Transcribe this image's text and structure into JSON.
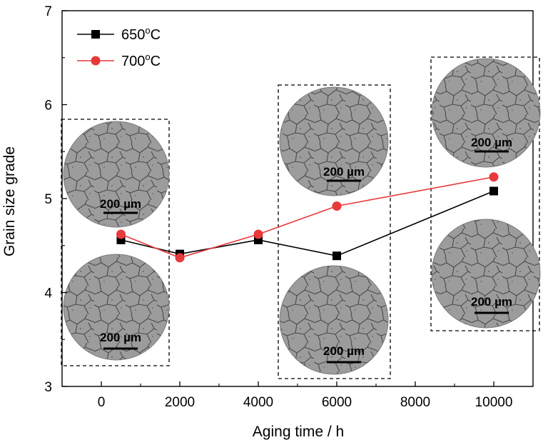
{
  "chart_data": {
    "type": "line",
    "xlabel": "Aging time / h",
    "ylabel": "Grain size grade",
    "xlim": [
      -1000,
      11000
    ],
    "ylim": [
      3,
      7
    ],
    "xticks": [
      0,
      2000,
      4000,
      6000,
      8000,
      10000
    ],
    "yticks": [
      3,
      4,
      5,
      6,
      7
    ],
    "grid": false,
    "legend_position": "top-left",
    "series": [
      {
        "name": "650°C",
        "legend_base": "650",
        "legend_sup": "o",
        "legend_suffix": "C",
        "color": "#000000",
        "marker": "square",
        "x": [
          500,
          2000,
          4000,
          6000,
          10000
        ],
        "y": [
          4.56,
          4.41,
          4.56,
          4.39,
          5.08
        ]
      },
      {
        "name": "700°C",
        "legend_base": "700",
        "legend_sup": "o",
        "legend_suffix": "C",
        "color": "#e8393c",
        "marker": "circle",
        "x": [
          500,
          2000,
          4000,
          6000,
          10000
        ],
        "y": [
          4.62,
          4.37,
          4.62,
          4.92,
          5.23
        ]
      }
    ],
    "micrograph_groups": [
      {
        "label": "200 µm",
        "label_bottom": "200 µm"
      },
      {
        "label": "200 µm",
        "label_bottom": "200 µm"
      },
      {
        "label": "200 µm",
        "label_bottom": "200 µm"
      }
    ]
  }
}
